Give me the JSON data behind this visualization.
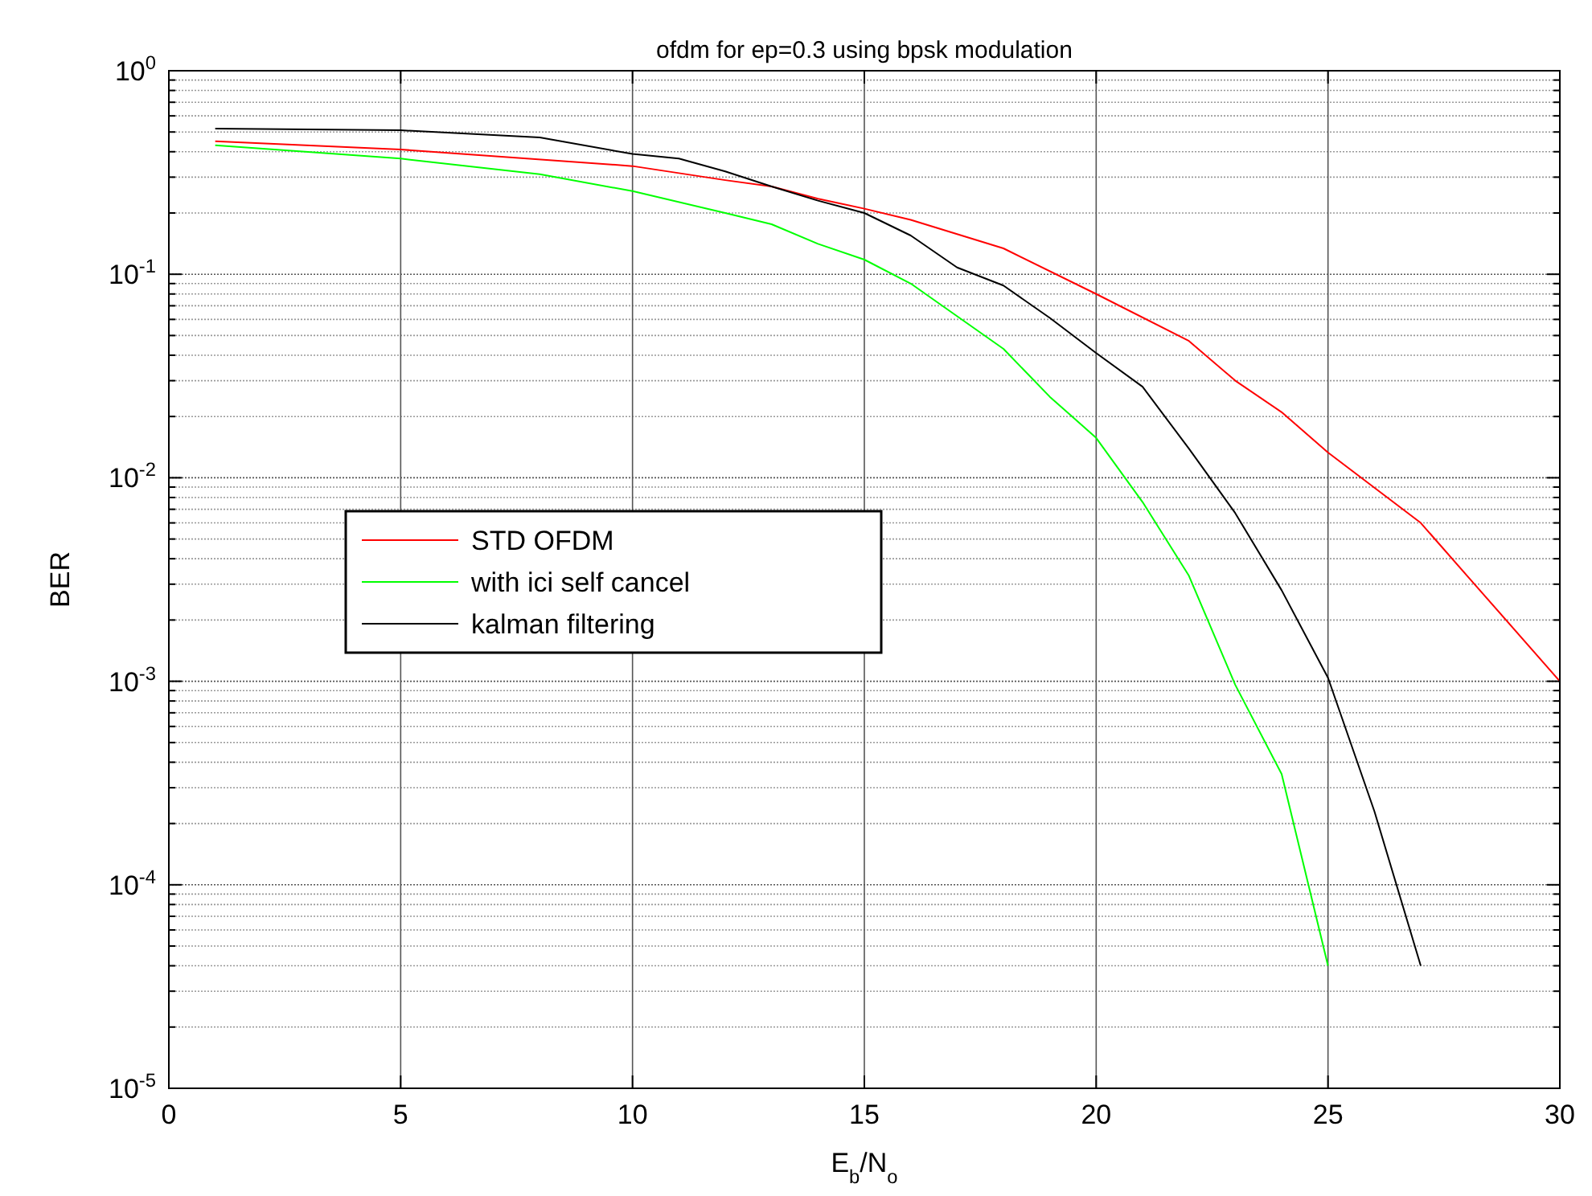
{
  "chart_data": {
    "type": "line",
    "title": "ofdm for ep=0.3 using bpsk modulation",
    "xlabel": "E$_{b}$/N$_{o}$",
    "ylabel": "BER",
    "log": "y",
    "grid": true,
    "legend": "left",
    "marker": "none",
    "line_style": "solid",
    "xlim": [
      0,
      30
    ],
    "xticks": [
      0,
      5,
      10,
      15,
      20,
      25,
      30
    ],
    "ylim": [
      1e-05,
      1
    ],
    "yticks": [
      {
        "value": 1e-05,
        "label": "10$^{-5}$"
      },
      {
        "value": 0.0001,
        "label": "10$^{-4}$"
      },
      {
        "value": 0.001,
        "label": "10$^{-3}$"
      },
      {
        "value": 0.01,
        "label": "10$^{-2}$"
      },
      {
        "value": 0.1,
        "label": "10$^{-1}$"
      },
      {
        "value": 1,
        "label": "10$^{0}$"
      }
    ],
    "series": [
      {
        "name": "STD OFDM",
        "color": "#ff0000",
        "x": [
          1,
          5,
          10,
          12,
          13,
          14,
          15,
          16,
          18,
          20,
          22,
          23,
          24,
          25,
          27,
          28,
          30
        ],
        "values": [
          0.45,
          0.41,
          0.34,
          0.29,
          0.27,
          0.235,
          0.21,
          0.185,
          0.134,
          0.08,
          0.047,
          0.03,
          0.021,
          0.0133,
          0.006,
          0.0033,
          0.001
        ]
      },
      {
        "name": "with ici self cancel",
        "color": "#00ff00",
        "x": [
          1,
          5,
          8,
          10,
          12,
          13,
          14,
          15,
          16,
          18,
          19,
          20,
          21,
          22,
          23,
          24,
          25
        ],
        "values": [
          0.43,
          0.37,
          0.31,
          0.256,
          0.2,
          0.176,
          0.141,
          0.118,
          0.09,
          0.043,
          0.025,
          0.0157,
          0.0076,
          0.0033,
          0.00096,
          0.00035,
          4e-05
        ]
      },
      {
        "name": "kalman filtering",
        "color": "#000000",
        "x": [
          1,
          5,
          8,
          10,
          11,
          12,
          13,
          14,
          15,
          16,
          17,
          18,
          19,
          20,
          21,
          22,
          23,
          24,
          25,
          26,
          27
        ],
        "values": [
          0.52,
          0.51,
          0.47,
          0.39,
          0.37,
          0.32,
          0.27,
          0.23,
          0.2,
          0.155,
          0.108,
          0.088,
          0.061,
          0.041,
          0.028,
          0.0139,
          0.0067,
          0.0028,
          0.00104,
          0.00023,
          4e-05
        ]
      }
    ]
  }
}
